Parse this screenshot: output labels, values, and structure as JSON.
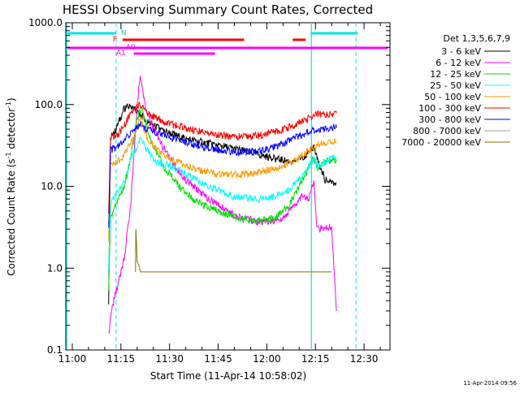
{
  "chart_data": {
    "type": "line",
    "title": "HESSI Observing Summary Count Rates, Corrected",
    "xlabel": "Start Time (11-Apr-14 10:58:02)",
    "ylabel": "Corrected Count Rate (s⁻¹ detector⁻¹)",
    "ylabel_main": "Corrected Count Rate (s",
    "ylabel_sup1": "-1",
    "ylabel_mid": " detector",
    "ylabel_sup2": "-1",
    "ylabel_end": ")",
    "y_scale": "log",
    "ylim": [
      0.1,
      1000
    ],
    "xlim": [
      "10:58:02",
      "12:38:00"
    ],
    "x_ticks": [
      "11:00",
      "11:15",
      "11:30",
      "11:45",
      "12:00",
      "12:15",
      "12:30"
    ],
    "x_tick_minutes": [
      0,
      15,
      30,
      45,
      60,
      75,
      90
    ],
    "y_ticks": [
      "0.1",
      "1.0",
      "10.0",
      "100.0",
      "1000.0"
    ],
    "y_tick_values": [
      0.1,
      1,
      10,
      100,
      1000
    ],
    "legend_title": "Det 1,3,5,6,7,9",
    "legend_position": "right",
    "timestamp": "11-Apr-2014 09:56",
    "series": [
      {
        "name": "3 - 6 keV",
        "color": "#000000",
        "x": [
          11.2,
          11.8,
          13,
          16,
          18,
          21,
          23,
          28,
          35,
          45,
          55,
          62,
          68,
          72,
          74.5,
          75.5,
          78,
          80,
          81.5
        ],
        "y": [
          0.4,
          40,
          45,
          90,
          95,
          75,
          62,
          48,
          38,
          32,
          26,
          22,
          20,
          24,
          30,
          22,
          12,
          11,
          11
        ]
      },
      {
        "name": "6 - 12 keV",
        "color": "#ff00ff",
        "x": [
          11.2,
          12,
          14,
          16,
          18,
          20,
          21,
          22,
          23,
          26,
          30,
          35,
          42,
          50,
          58,
          64,
          68,
          71,
          73,
          74.5,
          75.5,
          77,
          80,
          81.5
        ],
        "y": [
          0.15,
          0.3,
          0.6,
          1.3,
          6,
          100,
          230,
          120,
          80,
          42,
          22,
          12,
          7,
          4.5,
          3.6,
          3.8,
          5.5,
          8,
          7,
          12,
          3,
          3,
          3.2,
          0.3
        ]
      },
      {
        "name": "12 - 25 keV",
        "color": "#00dd00",
        "x": [
          11.2,
          11.8,
          14,
          16,
          18,
          20,
          21.5,
          24,
          28,
          33,
          38,
          45,
          52,
          58,
          63,
          67,
          70,
          73,
          74.5,
          75.5,
          78,
          80,
          81.5
        ],
        "y": [
          0.5,
          4,
          7,
          10,
          22,
          70,
          90,
          38,
          18,
          10,
          6.5,
          5,
          4,
          3.8,
          4.2,
          6,
          10,
          17,
          22,
          17,
          20,
          21,
          20
        ]
      },
      {
        "name": "25 - 50 keV",
        "color": "#00ffff",
        "x": [
          11.2,
          11.8,
          14,
          16,
          18,
          20,
          21,
          23,
          26,
          30,
          35,
          42,
          50,
          58,
          65,
          70,
          73,
          74.5,
          75.5,
          78,
          80,
          81.5
        ],
        "y": [
          1.0,
          6,
          9,
          11,
          22,
          30,
          42,
          28,
          20,
          18,
          14,
          10,
          7.5,
          7,
          8,
          12,
          18,
          22,
          18,
          20,
          22,
          22
        ]
      },
      {
        "name": "50 - 100 keV",
        "color": "#ff9900",
        "x": [
          11.2,
          11.8,
          14,
          16,
          18,
          20,
          21,
          23,
          26,
          30,
          38,
          45,
          52,
          58,
          64,
          68,
          72,
          74.5,
          76,
          80,
          81.5
        ],
        "y": [
          2,
          18,
          20,
          24,
          35,
          50,
          70,
          40,
          28,
          22,
          16,
          14,
          14,
          15,
          17,
          20,
          26,
          30,
          33,
          35,
          35
        ]
      },
      {
        "name": "100 - 300 keV",
        "color": "#ff0000",
        "x": [
          11.2,
          11.8,
          14,
          16,
          18,
          20,
          21,
          23,
          26,
          30,
          38,
          45,
          52,
          58,
          64,
          68,
          72,
          74.5,
          76,
          80,
          81.5
        ],
        "y": [
          5,
          40,
          42,
          55,
          80,
          95,
          100,
          80,
          68,
          58,
          48,
          42,
          40,
          42,
          48,
          55,
          65,
          72,
          76,
          78,
          78
        ]
      },
      {
        "name": "300 - 800 keV",
        "color": "#0000ff",
        "x": [
          11.2,
          11.8,
          14,
          16,
          18,
          20,
          21,
          23,
          26,
          30,
          38,
          45,
          52,
          58,
          64,
          68,
          72,
          74.5,
          76,
          80,
          81.5
        ],
        "y": [
          3,
          28,
          30,
          36,
          45,
          52,
          58,
          50,
          45,
          40,
          32,
          28,
          26,
          27,
          32,
          38,
          44,
          48,
          50,
          52,
          52
        ]
      },
      {
        "name": "800 - 7000 keV",
        "color": "#a0a0a0",
        "x": [],
        "y": []
      },
      {
        "name": "7000 - 20000 keV",
        "color": "#807000",
        "x": [
          19.5,
          19.6,
          19.8,
          20,
          20.5,
          21,
          22,
          28,
          34,
          69,
          73,
          78,
          80
        ],
        "y": [
          0.9,
          3,
          2,
          1.2,
          1.1,
          0.9,
          0.9,
          0.9,
          0.9,
          0.9,
          0.9,
          0.9,
          0.9
        ]
      }
    ],
    "flags": {
      "N_label": "N",
      "F_label": "F",
      "A0_label": "A0",
      "A1_label": "A1"
    }
  }
}
